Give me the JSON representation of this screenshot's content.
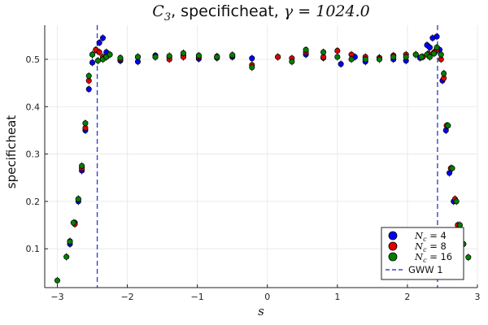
{
  "chart_data": {
    "type": "scatter",
    "title": {
      "var": "C",
      "sub": "3",
      "mid": ", specificheat, ",
      "gamma": "γ",
      "eq": " = 1024.0"
    },
    "xlabel": "s",
    "ylabel": "specificheat",
    "xlim": [
      -3.18,
      3.0
    ],
    "ylim": [
      0.018,
      0.572
    ],
    "xticks": [
      -3,
      -2,
      -1,
      0,
      1,
      2,
      3
    ],
    "yticks": [
      0.1,
      0.2,
      0.3,
      0.4,
      0.5
    ],
    "xtick_labels": [
      "−3",
      "−2",
      "−1",
      "0",
      "1",
      "2",
      "3"
    ],
    "ytick_labels": [
      "0.1",
      "0.2",
      "0.3",
      "0.4",
      "0.5"
    ],
    "grid": true,
    "legend_position": "bottom-right",
    "series": [
      {
        "label_var": "N",
        "label_sub": "c",
        "label_val": " = 4",
        "color": "#0000ff",
        "points": [
          [
            -2.82,
            0.11
          ],
          [
            -2.75,
            0.155
          ],
          [
            -2.7,
            0.2
          ],
          [
            -2.65,
            0.265
          ],
          [
            -2.6,
            0.35
          ],
          [
            -2.55,
            0.437
          ],
          [
            -2.5,
            0.493
          ],
          [
            -2.45,
            0.52
          ],
          [
            -2.4,
            0.535
          ],
          [
            -2.35,
            0.545
          ],
          [
            -2.3,
            0.515
          ],
          [
            -2.25,
            0.51
          ],
          [
            -2.1,
            0.497
          ],
          [
            -1.85,
            0.495
          ],
          [
            -1.6,
            0.508
          ],
          [
            -1.4,
            0.505
          ],
          [
            -1.2,
            0.508
          ],
          [
            -0.98,
            0.501
          ],
          [
            -0.72,
            0.506
          ],
          [
            -0.5,
            0.505
          ],
          [
            -0.22,
            0.502
          ],
          [
            0.15,
            0.505
          ],
          [
            0.55,
            0.51
          ],
          [
            0.8,
            0.503
          ],
          [
            1.05,
            0.49
          ],
          [
            1.25,
            0.505
          ],
          [
            1.4,
            0.495
          ],
          [
            1.6,
            0.503
          ],
          [
            1.8,
            0.5
          ],
          [
            1.98,
            0.497
          ],
          [
            2.18,
            0.503
          ],
          [
            2.28,
            0.53
          ],
          [
            2.32,
            0.525
          ],
          [
            2.36,
            0.545
          ],
          [
            2.42,
            0.548
          ],
          [
            2.46,
            0.52
          ],
          [
            2.5,
            0.455
          ],
          [
            2.55,
            0.35
          ],
          [
            2.6,
            0.26
          ],
          [
            2.66,
            0.2
          ],
          [
            2.72,
            0.15
          ],
          [
            2.78,
            0.11
          ]
        ]
      },
      {
        "label_var": "N",
        "label_sub": "c",
        "label_val": " = 8",
        "color": "#e00000",
        "points": [
          [
            -2.82,
            0.116
          ],
          [
            -2.75,
            0.152
          ],
          [
            -2.7,
            0.205
          ],
          [
            -2.65,
            0.27
          ],
          [
            -2.6,
            0.355
          ],
          [
            -2.55,
            0.455
          ],
          [
            -2.5,
            0.51
          ],
          [
            -2.45,
            0.52
          ],
          [
            -2.4,
            0.515
          ],
          [
            -2.35,
            0.505
          ],
          [
            -2.3,
            0.505
          ],
          [
            -2.1,
            0.5
          ],
          [
            -1.85,
            0.505
          ],
          [
            -1.6,
            0.505
          ],
          [
            -1.4,
            0.5
          ],
          [
            -1.2,
            0.505
          ],
          [
            -0.98,
            0.505
          ],
          [
            -0.72,
            0.503
          ],
          [
            -0.5,
            0.507
          ],
          [
            -0.22,
            0.488
          ],
          [
            0.15,
            0.505
          ],
          [
            0.35,
            0.502
          ],
          [
            0.55,
            0.515
          ],
          [
            0.8,
            0.505
          ],
          [
            1.0,
            0.518
          ],
          [
            1.2,
            0.51
          ],
          [
            1.4,
            0.505
          ],
          [
            1.6,
            0.503
          ],
          [
            1.8,
            0.508
          ],
          [
            1.98,
            0.51
          ],
          [
            2.12,
            0.51
          ],
          [
            2.22,
            0.505
          ],
          [
            2.3,
            0.512
          ],
          [
            2.38,
            0.515
          ],
          [
            2.42,
            0.52
          ],
          [
            2.48,
            0.5
          ],
          [
            2.52,
            0.46
          ],
          [
            2.56,
            0.36
          ],
          [
            2.62,
            0.27
          ],
          [
            2.68,
            0.205
          ],
          [
            2.72,
            0.15
          ],
          [
            2.8,
            0.11
          ]
        ]
      },
      {
        "label_var": "N",
        "label_sub": "c",
        "label_val": " = 16",
        "color": "#008000",
        "points": [
          [
            -3.0,
            0.033
          ],
          [
            -2.87,
            0.083
          ],
          [
            -2.82,
            0.115
          ],
          [
            -2.77,
            0.155
          ],
          [
            -2.7,
            0.205
          ],
          [
            -2.65,
            0.275
          ],
          [
            -2.6,
            0.365
          ],
          [
            -2.55,
            0.465
          ],
          [
            -2.5,
            0.51
          ],
          [
            -2.42,
            0.497
          ],
          [
            -2.35,
            0.5
          ],
          [
            -2.3,
            0.505
          ],
          [
            -2.25,
            0.51
          ],
          [
            -2.1,
            0.503
          ],
          [
            -1.85,
            0.505
          ],
          [
            -1.6,
            0.505
          ],
          [
            -1.4,
            0.507
          ],
          [
            -1.2,
            0.513
          ],
          [
            -0.98,
            0.508
          ],
          [
            -0.72,
            0.505
          ],
          [
            -0.5,
            0.509
          ],
          [
            -0.22,
            0.483
          ],
          [
            0.35,
            0.495
          ],
          [
            0.55,
            0.52
          ],
          [
            0.8,
            0.515
          ],
          [
            1.0,
            0.505
          ],
          [
            1.2,
            0.5
          ],
          [
            1.4,
            0.5
          ],
          [
            1.6,
            0.5
          ],
          [
            1.8,
            0.505
          ],
          [
            1.98,
            0.505
          ],
          [
            2.12,
            0.51
          ],
          [
            2.2,
            0.505
          ],
          [
            2.28,
            0.51
          ],
          [
            2.32,
            0.505
          ],
          [
            2.38,
            0.512
          ],
          [
            2.42,
            0.525
          ],
          [
            2.48,
            0.51
          ],
          [
            2.52,
            0.47
          ],
          [
            2.58,
            0.36
          ],
          [
            2.64,
            0.27
          ],
          [
            2.7,
            0.2
          ],
          [
            2.75,
            0.15
          ],
          [
            2.8,
            0.11
          ],
          [
            2.87,
            0.082
          ]
        ]
      }
    ],
    "reference_lines": [
      {
        "label": "GWW 1",
        "color": "#3b44c8",
        "x": [
          -2.43,
          2.43
        ],
        "style": "dashed"
      }
    ]
  }
}
